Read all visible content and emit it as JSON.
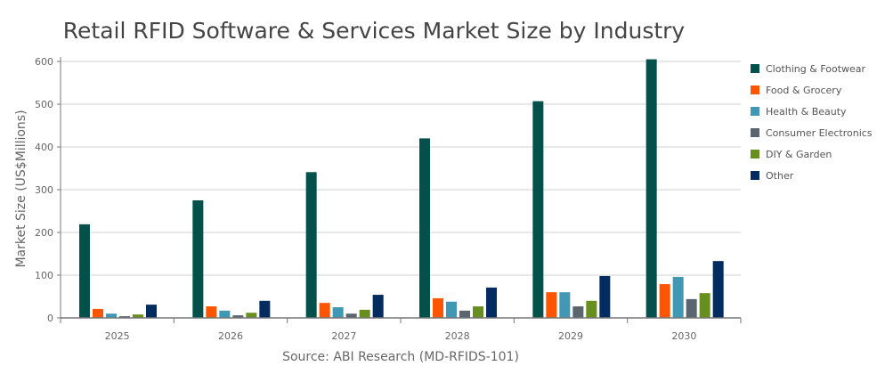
{
  "chart_data": {
    "type": "bar",
    "title": "Retail RFID Software & Services Market Size by Industry",
    "ylabel": "Market Size (US$Millions)",
    "xlabel": "Source: ABI Research (MD-RFIDS-101)",
    "ylim": [
      0,
      600
    ],
    "yticks": [
      "0",
      "100",
      "200",
      "300",
      "400",
      "500",
      "600"
    ],
    "grid": true,
    "legend": "right",
    "categories": [
      "2025",
      "2026",
      "2027",
      "2028",
      "2029",
      "2030"
    ],
    "series": [
      {
        "name": "Clothing & Footwear",
        "color": "#04504a",
        "values": [
          219,
          275,
          341,
          420,
          507,
          605
        ]
      },
      {
        "name": "Food & Grocery",
        "color": "#ff5500",
        "values": [
          21,
          27,
          35,
          46,
          60,
          79
        ]
      },
      {
        "name": "Health & Beauty",
        "color": "#4198b5",
        "values": [
          10,
          17,
          25,
          38,
          60,
          96
        ]
      },
      {
        "name": "Consumer Electronics",
        "color": "#5a6570",
        "values": [
          4,
          6,
          10,
          17,
          27,
          44
        ]
      },
      {
        "name": "DIY & Garden",
        "color": "#688e1f",
        "values": [
          8,
          12,
          19,
          27,
          40,
          58
        ]
      },
      {
        "name": "Other",
        "color": "#022b5f",
        "values": [
          31,
          40,
          54,
          71,
          98,
          133
        ]
      }
    ]
  }
}
